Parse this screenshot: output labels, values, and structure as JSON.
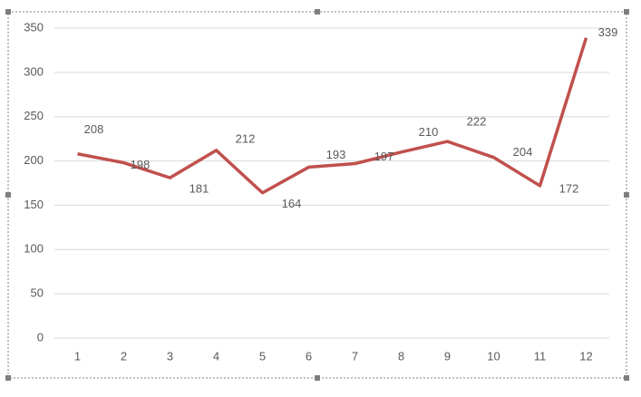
{
  "chart_data": {
    "type": "line",
    "categories": [
      "1",
      "2",
      "3",
      "4",
      "5",
      "6",
      "7",
      "8",
      "9",
      "10",
      "11",
      "12"
    ],
    "values": [
      208,
      198,
      181,
      212,
      164,
      193,
      197,
      210,
      222,
      204,
      172,
      339
    ],
    "color": "#c0504d",
    "ylim": [
      0,
      350
    ],
    "yticks": [
      0,
      50,
      100,
      150,
      200,
      250,
      300,
      350
    ],
    "grid": true
  }
}
